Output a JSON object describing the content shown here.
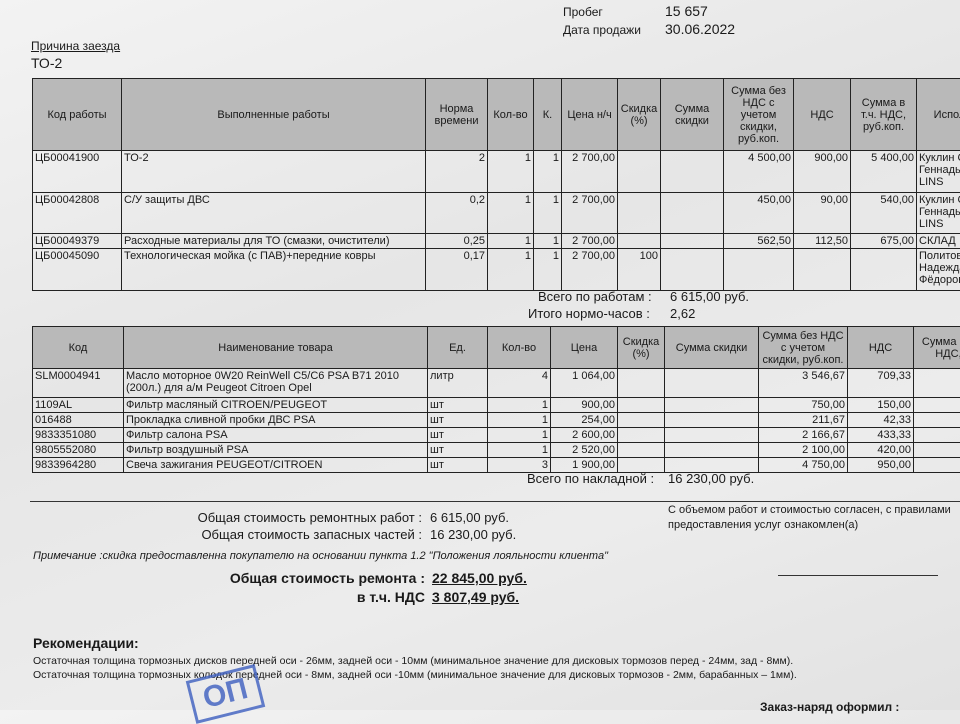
{
  "header": {
    "mileage_label": "Пробег",
    "mileage_value": "15 657",
    "sale_date_label": "Дата продажи",
    "sale_date_value": "30.06.2022",
    "reason_label": "Причина заезда",
    "reason_value": "ТО-2"
  },
  "works": {
    "columns": [
      "Код работы",
      "Выполненные работы",
      "Норма времени",
      "Кол-во",
      "К.",
      "Цена н/ч",
      "Скидка (%)",
      "Сумма скидки",
      "Сумма без НДС с учетом скидки, руб.коп.",
      "НДС",
      "Сумма в т.ч. НДС, руб.коп.",
      "Испол"
    ],
    "rows": [
      [
        "ЦБ00041900",
        "ТО-2",
        "2",
        "1",
        "1",
        "2 700,00",
        "",
        "",
        "4 500,00",
        "900,00",
        "5 400,00",
        "Куклин С Геннадье LINS"
      ],
      [
        "ЦБ00042808",
        "С/У защиты ДВС",
        "0,2",
        "1",
        "1",
        "2 700,00",
        "",
        "",
        "450,00",
        "90,00",
        "540,00",
        "Куклин С Геннадье LINS"
      ],
      [
        "ЦБ00049379",
        "Расходные материалы для ТО (смазки, очистители)",
        "0,25",
        "1",
        "1",
        "2 700,00",
        "",
        "",
        "562,50",
        "112,50",
        "675,00",
        "СКЛАД"
      ],
      [
        "ЦБ00045090",
        "Технологическая мойка (с ПАВ)+передние ковры",
        "0,17",
        "1",
        "1",
        "2 700,00",
        "100",
        "",
        "",
        "",
        "",
        "Политова Надежда Фёдоров"
      ]
    ],
    "total_label": "Всего по работам :",
    "total_value": "6 615,00 руб.",
    "hours_label": "Итого нормо-часов :",
    "hours_value": "2,62"
  },
  "parts": {
    "columns": [
      "Код",
      "Наименование товара",
      "Ед.",
      "Кол-во",
      "Цена",
      "Скидка (%)",
      "Сумма скидки",
      "Сумма без НДС с учетом скидки, руб.коп.",
      "НДС",
      "Сумма в т.ч. НДС, р"
    ],
    "rows": [
      [
        "SLM0004941",
        "Масло моторное 0W20 ReinWell C5/C6 PSA B71 2010 (200л.) для а/м Peugeot Citroen Opel",
        "литр",
        "4",
        "1 064,00",
        "",
        "",
        "3 546,67",
        "709,33",
        ""
      ],
      [
        "1109AL",
        "Фильтр масляный CITROEN/PEUGEOT",
        "шт",
        "1",
        "900,00",
        "",
        "",
        "750,00",
        "150,00",
        ""
      ],
      [
        "016488",
        "Прокладка сливной пробки ДВС PSA",
        "шт",
        "1",
        "254,00",
        "",
        "",
        "211,67",
        "42,33",
        ""
      ],
      [
        "9833351080",
        "Фильтр салона PSA",
        "шт",
        "1",
        "2 600,00",
        "",
        "",
        "2 166,67",
        "433,33",
        ""
      ],
      [
        "9805552080",
        "Фильтр воздушный PSA",
        "шт",
        "1",
        "2 520,00",
        "",
        "",
        "2 100,00",
        "420,00",
        ""
      ],
      [
        "9833964280",
        "Свеча зажигания PEUGEOT/CITROEN",
        "шт",
        "3",
        "1 900,00",
        "",
        "",
        "4 750,00",
        "950,00",
        ""
      ]
    ],
    "total_label": "Всего по накладной :",
    "total_value": "16 230,00 руб."
  },
  "summary": {
    "works_label": "Общая стоимость ремонтных работ :",
    "works_value": "6 615,00 руб.",
    "parts_label": "Общая стоимость запасных частей :",
    "parts_value": "16 230,00 руб.",
    "note": "Примечание :скидка предоставленна покупателю на основании пункта 1.2 \"Положения лояльности клиента\"",
    "repair_label": "Общая стоимость ремонта :",
    "repair_value": "22 845,00 руб.",
    "vat_label": "в т.ч. НДС",
    "vat_value": "3 807,49 руб.",
    "agreement": "С объемом работ и стоимостью согласен, с правилами предоставления услуг ознакомлен(а)"
  },
  "recommendations": {
    "title": "Рекомендации:",
    "lines": [
      "Остаточная толщина тормозных дисков передней оси - 26мм, задней оси - 10мм (минимальное значение для дисковых тормозов перед - 24мм, зад - 8мм).",
      "Остаточная толщина тормозных колодок передней оси - 8мм, задней оси -10мм (минимальное значение для дисковых тормозов - 2мм, барабанных – 1мм)."
    ]
  },
  "footer": {
    "order_label": "Заказ-наряд оформил :",
    "stamp_text": "ОП"
  }
}
